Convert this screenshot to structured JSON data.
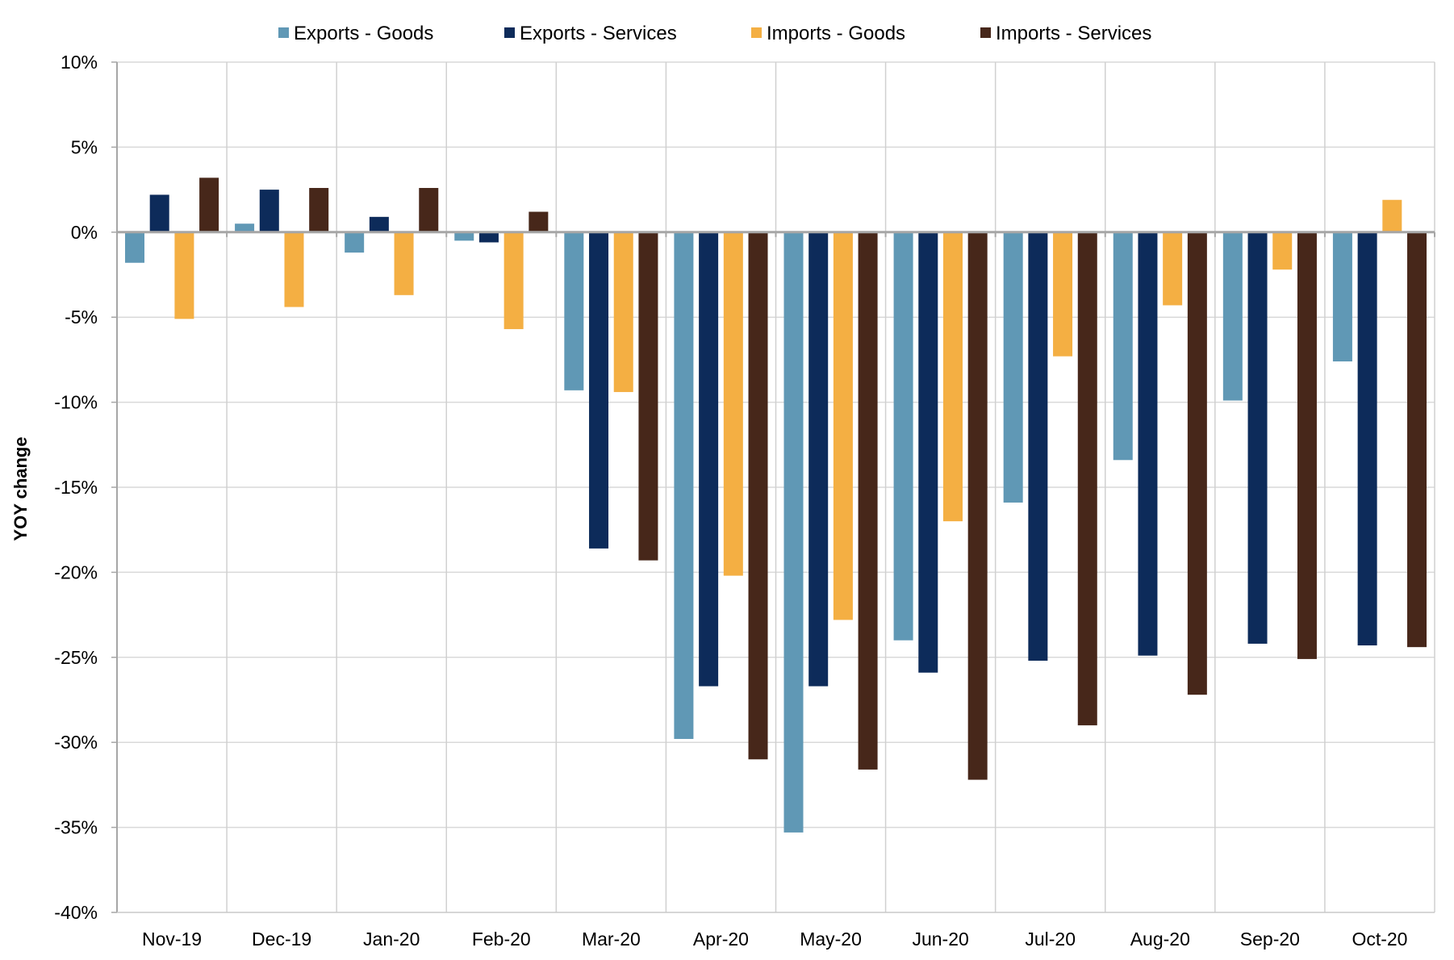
{
  "chart_data": {
    "type": "bar",
    "title": "",
    "xlabel": "",
    "ylabel": "YOY change",
    "ylim": [
      -40,
      10
    ],
    "ytick_step": 5,
    "ytick_labels": [
      "10%",
      "5%",
      "0%",
      "-5%",
      "-10%",
      "-15%",
      "-20%",
      "-25%",
      "-30%",
      "-35%",
      "-40%"
    ],
    "grid": true,
    "legend_position": "top",
    "categories": [
      "Nov-19",
      "Dec-19",
      "Jan-20",
      "Feb-20",
      "Mar-20",
      "Apr-20",
      "May-20",
      "Jun-20",
      "Jul-20",
      "Aug-20",
      "Sep-20",
      "Oct-20"
    ],
    "series": [
      {
        "name": "Exports - Goods",
        "color": "#6098B5",
        "values": [
          -1.8,
          0.5,
          -1.2,
          -0.5,
          -9.3,
          -29.8,
          -35.3,
          -24.0,
          -15.9,
          -13.4,
          -9.9,
          -7.6
        ]
      },
      {
        "name": "Exports - Services",
        "color": "#0D2B5A",
        "values": [
          2.2,
          2.5,
          0.9,
          -0.6,
          -18.6,
          -26.7,
          -26.7,
          -25.9,
          -25.2,
          -24.9,
          -24.2,
          -24.3
        ]
      },
      {
        "name": "Imports - Goods",
        "color": "#F4AF43",
        "values": [
          -5.1,
          -4.4,
          -3.7,
          -5.7,
          -9.4,
          -20.2,
          -22.8,
          -17.0,
          -7.3,
          -4.3,
          -2.2,
          1.9
        ]
      },
      {
        "name": "Imports - Services",
        "color": "#47271A",
        "values": [
          3.2,
          2.6,
          2.6,
          1.2,
          -19.3,
          -31.0,
          -31.6,
          -32.2,
          -29.0,
          -27.2,
          -25.1,
          -24.4
        ]
      }
    ]
  }
}
